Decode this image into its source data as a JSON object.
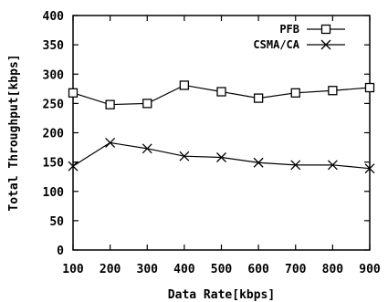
{
  "chart_data": {
    "type": "line",
    "title": "",
    "xlabel": "Data Rate[kbps]",
    "ylabel": "Total Throughput[kbps]",
    "x": [
      100,
      200,
      300,
      400,
      500,
      600,
      700,
      800,
      900
    ],
    "xlim": [
      100,
      900
    ],
    "ylim": [
      0,
      400
    ],
    "xticks": [
      "100",
      "200",
      "300",
      "400",
      "500",
      "600",
      "700",
      "800",
      "900"
    ],
    "yticks": [
      "0",
      "50",
      "100",
      "150",
      "200",
      "250",
      "300",
      "350",
      "400"
    ],
    "grid": false,
    "legend_position": "top-right",
    "series": [
      {
        "name": "PFB",
        "marker": "square",
        "color": "#000000",
        "values": [
          268,
          248,
          250,
          281,
          270,
          259,
          268,
          272,
          277
        ]
      },
      {
        "name": "CSMA/CA",
        "marker": "x",
        "color": "#000000",
        "values": [
          143,
          183,
          173,
          160,
          158,
          149,
          145,
          145,
          139
        ]
      }
    ]
  }
}
